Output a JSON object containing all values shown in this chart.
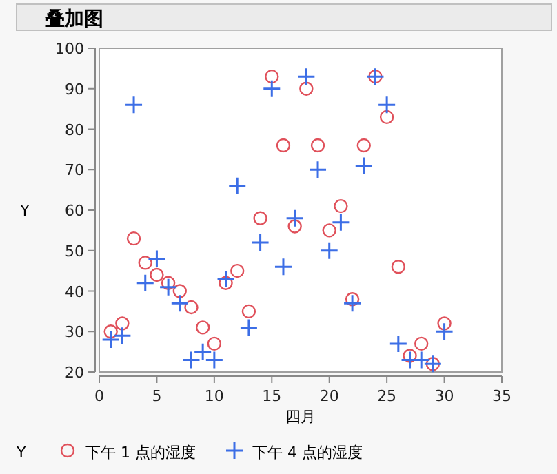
{
  "chart_data": {
    "type": "scatter",
    "title": "叠加图",
    "xlabel": "四月",
    "ylabel": "Y",
    "legend_title": "Y",
    "legend": "bottom",
    "grid": false,
    "xlim": [
      0,
      35
    ],
    "xticks": [
      0,
      5,
      10,
      15,
      20,
      25,
      30,
      35
    ],
    "ylim": [
      20,
      100
    ],
    "yticks": [
      20,
      30,
      40,
      50,
      60,
      70,
      80,
      90,
      100
    ],
    "x": [
      1,
      2,
      3,
      4,
      5,
      6,
      7,
      8,
      9,
      10,
      11,
      12,
      13,
      14,
      15,
      16,
      17,
      18,
      19,
      20,
      21,
      22,
      23,
      24,
      25,
      26,
      27,
      28,
      29,
      30
    ],
    "series": [
      {
        "name": "下午 1 点的湿度",
        "color": "#e0505a",
        "marker": "circle",
        "values": [
          30,
          32,
          53,
          47,
          44,
          42,
          40,
          36,
          31,
          27,
          42,
          45,
          35,
          58,
          93,
          76,
          56,
          90,
          76,
          55,
          61,
          38,
          76,
          93,
          83,
          46,
          24,
          27,
          22,
          32
        ]
      },
      {
        "name": "下午 4 点的湿度",
        "color": "#3c6ee6",
        "marker": "cross",
        "values": [
          28,
          29,
          86,
          42,
          48,
          41,
          37,
          23,
          25,
          23,
          43,
          66,
          31,
          52,
          90,
          46,
          58,
          93,
          70,
          50,
          57,
          37,
          71,
          93,
          86,
          27,
          23,
          23,
          22,
          30
        ]
      }
    ]
  }
}
